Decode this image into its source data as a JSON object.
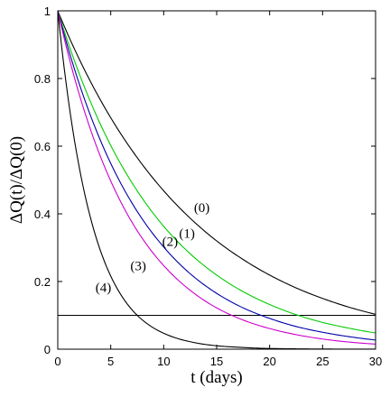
{
  "chart_data": {
    "type": "line",
    "title": "",
    "xlabel": "t (days)",
    "ylabel": "ΔQ(t)/ΔQ(0)",
    "xlim": [
      0,
      30
    ],
    "ylim": [
      0,
      1
    ],
    "x_ticks": [
      "0",
      "5",
      "10",
      "15",
      "20",
      "25",
      "30"
    ],
    "y_ticks": [
      "0",
      "0.2",
      "0.4",
      "0.6",
      "0.8",
      "1"
    ],
    "grid": false,
    "legend": "none",
    "x": [
      0,
      2.5,
      5,
      7.5,
      10,
      12.5,
      15,
      17.5,
      20,
      22.5,
      25,
      27.5,
      30
    ],
    "series": [
      {
        "name": "(0)",
        "color": "#000000",
        "values": [
          1.0,
          0.827,
          0.684,
          0.566,
          0.468,
          0.387,
          0.32,
          0.265,
          0.219,
          0.181,
          0.15,
          0.124,
          0.103
        ]
      },
      {
        "name": "(1)",
        "color": "#00cc00",
        "values": [
          1.0,
          0.776,
          0.602,
          0.468,
          0.363,
          0.282,
          0.219,
          0.17,
          0.132,
          0.102,
          0.079,
          0.062,
          0.048
        ]
      },
      {
        "name": "(2)",
        "color": "#0000aa",
        "values": [
          1.0,
          0.741,
          0.549,
          0.407,
          0.302,
          0.223,
          0.165,
          0.122,
          0.091,
          0.067,
          0.05,
          0.037,
          0.027
        ]
      },
      {
        "name": "(3)",
        "color": "#cc00cc",
        "values": [
          1.0,
          0.705,
          0.497,
          0.35,
          0.247,
          0.174,
          0.122,
          0.086,
          0.061,
          0.043,
          0.03,
          0.021,
          0.015
        ]
      },
      {
        "name": "(4)",
        "color": "#000000",
        "values": [
          1.0,
          0.465,
          0.216,
          0.1,
          0.047,
          0.022,
          0.01,
          0.005,
          0.002,
          0.001,
          0.0005,
          0.0002,
          0.0001
        ]
      }
    ],
    "reference_line": {
      "y": 0.1,
      "color": "#000000"
    },
    "curve_labels": [
      {
        "text": "(0)",
        "x": 13.6,
        "y": 0.405
      },
      {
        "text": "(1)",
        "x": 12.2,
        "y": 0.33
      },
      {
        "text": "(2)",
        "x": 10.6,
        "y": 0.305
      },
      {
        "text": "(3)",
        "x": 7.6,
        "y": 0.233
      },
      {
        "text": "(4)",
        "x": 4.3,
        "y": 0.17
      }
    ]
  }
}
